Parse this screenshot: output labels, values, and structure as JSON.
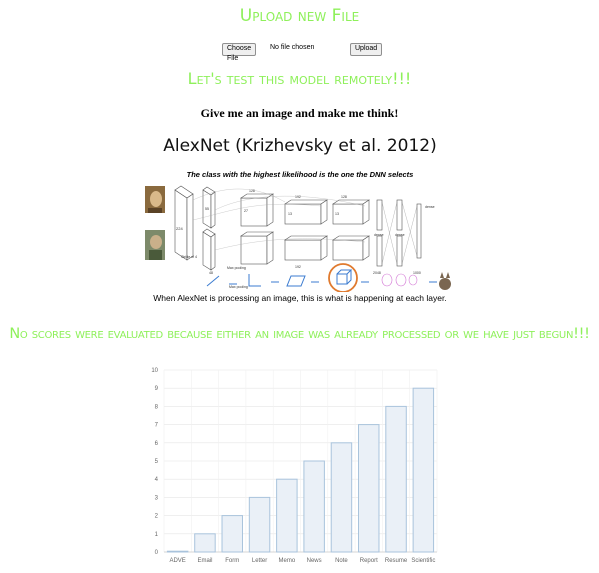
{
  "upload": {
    "title": "Upload new File",
    "choose_label": "Choose File",
    "no_file_text": "No file chosen",
    "upload_label": "Upload"
  },
  "test_title": "Let's test this model remotely!!!",
  "prompt": "Give me an image and make me think!",
  "alexnet": {
    "title": "AlexNet (Krizhevsky et al. 2012)",
    "subtitle": "The class with the highest likelihood is the one the DNN selects",
    "caption": "When AlexNet is processing an image, this is what is happening at each layer.",
    "labels": {
      "stride": "Stride of 4",
      "max_pooling": "Max pooling",
      "dense": "dense",
      "n224": "224",
      "n11": "11",
      "n5": "5",
      "n3": "3",
      "n48": "48",
      "n128": "128",
      "n192": "192",
      "n2048": "2048",
      "n1000": "1000",
      "n13": "13",
      "n27": "27",
      "n55": "55"
    }
  },
  "status_message": "No scores were evaluated because either an image was already processed or we have just begun!!!",
  "colors": {
    "green": "#8ef05a",
    "bar_fill": "#eaf0f7",
    "bar_stroke": "#a9c3dc",
    "highlight": "#e07a2e",
    "arrow_blue": "#3b7bd0"
  },
  "chart_data": {
    "type": "bar",
    "categories": [
      "ADVE",
      "Email",
      "Form",
      "Letter",
      "Memo",
      "News",
      "Note",
      "Report",
      "Resume",
      "Scientific"
    ],
    "values": [
      0,
      1,
      2,
      3,
      4,
      5,
      6,
      7,
      8,
      9
    ],
    "ylim": [
      0,
      10
    ],
    "yticks": [
      "0",
      "1",
      "2",
      "3",
      "4",
      "5",
      "6",
      "7",
      "8",
      "9",
      "10"
    ],
    "grid": true
  }
}
